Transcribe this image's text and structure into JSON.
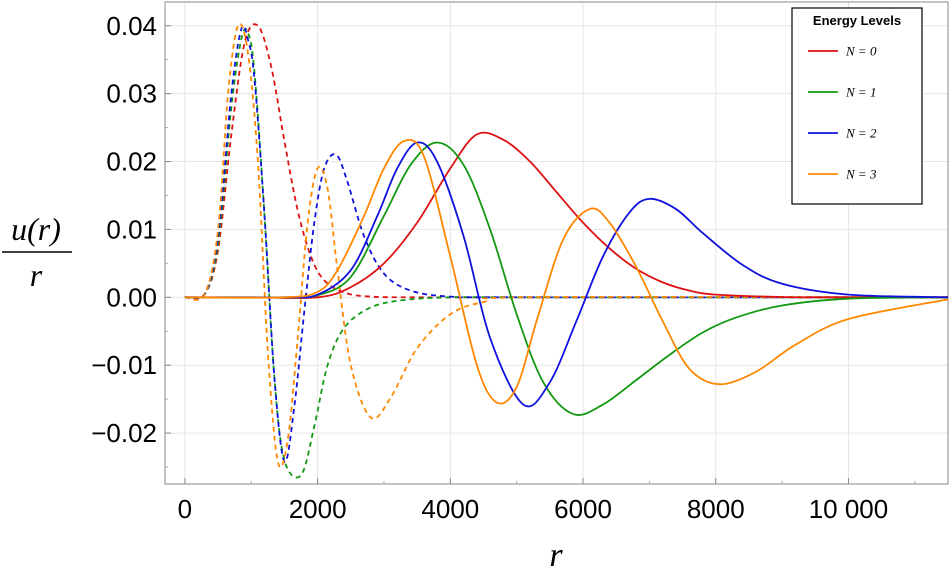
{
  "chart_data": {
    "type": "line",
    "xlabel": "r",
    "ylabel_numerator": "u(r)",
    "ylabel_denominator": "r",
    "xlim": [
      -300,
      11500
    ],
    "ylim": [
      -0.0275,
      0.0435
    ],
    "xticks": [
      0,
      2000,
      4000,
      6000,
      8000,
      10000
    ],
    "xtick_labels": [
      "0",
      "2000",
      "4000",
      "6000",
      "8000",
      "10 000"
    ],
    "yticks": [
      -0.02,
      -0.01,
      0.0,
      0.01,
      0.02,
      0.03,
      0.04
    ],
    "ytick_labels": [
      "−0.02",
      "−0.01",
      "0.00",
      "0.01",
      "0.02",
      "0.03",
      "0.04"
    ],
    "grid": true,
    "legend": {
      "title": "Energy Levels",
      "placement": "top-right",
      "entries": [
        {
          "label": "N = 0",
          "color": "#dd1111"
        },
        {
          "label": "N = 1",
          "color": "#119911"
        },
        {
          "label": "N = 2",
          "color": "#1111dd"
        },
        {
          "label": "N = 3",
          "color": "#ff8800"
        }
      ]
    },
    "series": [
      {
        "name": "N = 0",
        "style": "solid",
        "color": "#dd1111",
        "x": [
          0,
          1000,
          2000,
          2500,
          3000,
          3500,
          4000,
          4400,
          4800,
          5200,
          5600,
          6000,
          6400,
          6800,
          7200,
          7600,
          8000,
          9000,
          10000,
          11500
        ],
        "y": [
          0,
          0,
          0,
          0.0015,
          0.005,
          0.011,
          0.019,
          0.024,
          0.0232,
          0.02,
          0.0155,
          0.011,
          0.0072,
          0.0042,
          0.0022,
          0.001,
          0.0004,
          5e-05,
          0,
          0
        ]
      },
      {
        "name": "N = 1",
        "style": "solid",
        "color": "#119911",
        "x": [
          0,
          1500,
          2000,
          2500,
          3000,
          3400,
          3800,
          4200,
          4600,
          5000,
          5400,
          5850,
          6300,
          6800,
          7300,
          7800,
          8300,
          9000,
          10000,
          11500
        ],
        "y": [
          0,
          0,
          0.0003,
          0.003,
          0.012,
          0.0195,
          0.0228,
          0.0195,
          0.01,
          -0.0025,
          -0.0125,
          -0.0172,
          -0.0158,
          -0.0122,
          -0.0085,
          -0.0052,
          -0.003,
          -0.0012,
          -0.0002,
          0
        ]
      },
      {
        "name": "N = 2",
        "style": "solid",
        "color": "#1111dd",
        "x": [
          0,
          1500,
          2000,
          2500,
          2900,
          3200,
          3500,
          3800,
          4200,
          4600,
          5100,
          5500,
          5900,
          6300,
          6700,
          7000,
          7400,
          7800,
          8400,
          9000,
          10000,
          11500
        ],
        "y": [
          0,
          0,
          0.0004,
          0.004,
          0.012,
          0.019,
          0.0228,
          0.02,
          0.009,
          -0.006,
          -0.0158,
          -0.0125,
          -0.0035,
          0.006,
          0.0125,
          0.0145,
          0.013,
          0.0095,
          0.0048,
          0.002,
          0.0004,
          0
        ]
      },
      {
        "name": "N = 3",
        "style": "solid",
        "color": "#ff8800",
        "x": [
          0,
          1500,
          2000,
          2300,
          2700,
          3000,
          3300,
          3600,
          4000,
          4400,
          4700,
          5000,
          5300,
          5700,
          6100,
          6400,
          6800,
          7200,
          7600,
          8050,
          8600,
          9200,
          10000,
          11500
        ],
        "y": [
          0,
          0,
          0.0008,
          0.004,
          0.012,
          0.019,
          0.023,
          0.0208,
          0.006,
          -0.01,
          -0.0155,
          -0.0132,
          -0.0035,
          0.0085,
          0.013,
          0.011,
          0.0045,
          -0.0035,
          -0.0105,
          -0.0128,
          -0.011,
          -0.007,
          -0.0032,
          -0.0003
        ]
      },
      {
        "name": "N = 0",
        "style": "dashed",
        "color": "#dd1111",
        "x": [
          0,
          300,
          500,
          700,
          900,
          1100,
          1300,
          1500,
          1700,
          1900,
          2100,
          2400,
          2800,
          3500,
          5000,
          11500
        ],
        "y": [
          0,
          0.0005,
          0.007,
          0.024,
          0.0375,
          0.04,
          0.034,
          0.023,
          0.0128,
          0.006,
          0.0025,
          0.0007,
          0.0001,
          0,
          0,
          0
        ]
      },
      {
        "name": "N = 1",
        "style": "dashed",
        "color": "#119911",
        "x": [
          0,
          300,
          500,
          700,
          850,
          950,
          1050,
          1200,
          1350,
          1500,
          1750,
          1950,
          2150,
          2400,
          2800,
          3300,
          4000,
          5000,
          11500
        ],
        "y": [
          0,
          0.0005,
          0.008,
          0.028,
          0.038,
          0.039,
          0.033,
          0.012,
          -0.012,
          -0.024,
          -0.0262,
          -0.019,
          -0.01,
          -0.0045,
          -0.0015,
          -0.0004,
          0,
          0,
          0
        ]
      },
      {
        "name": "N = 2",
        "style": "dashed",
        "color": "#1111dd",
        "x": [
          0,
          300,
          500,
          700,
          850,
          950,
          1050,
          1200,
          1350,
          1500,
          1650,
          1800,
          1950,
          2100,
          2280,
          2450,
          2700,
          3000,
          3400,
          4000,
          5000,
          11500
        ],
        "y": [
          0,
          0.0005,
          0.009,
          0.03,
          0.0395,
          0.038,
          0.032,
          0.012,
          -0.012,
          -0.0242,
          -0.016,
          -0.002,
          0.011,
          0.019,
          0.021,
          0.017,
          0.009,
          0.0035,
          0.001,
          0.0001,
          0,
          0
        ]
      },
      {
        "name": "N = 3",
        "style": "dashed",
        "color": "#ff8800",
        "x": [
          0,
          300,
          500,
          650,
          800,
          950,
          1100,
          1250,
          1400,
          1550,
          1700,
          1850,
          2000,
          2150,
          2300,
          2500,
          2800,
          3100,
          3500,
          4000,
          4500,
          5200,
          11500
        ],
        "y": [
          0,
          0.0005,
          0.01,
          0.03,
          0.04,
          0.036,
          0.02,
          -0.008,
          -0.0242,
          -0.021,
          -0.006,
          0.011,
          0.019,
          0.016,
          0.004,
          -0.01,
          -0.0177,
          -0.0148,
          -0.0075,
          -0.0025,
          -0.0007,
          0,
          0
        ]
      }
    ]
  }
}
